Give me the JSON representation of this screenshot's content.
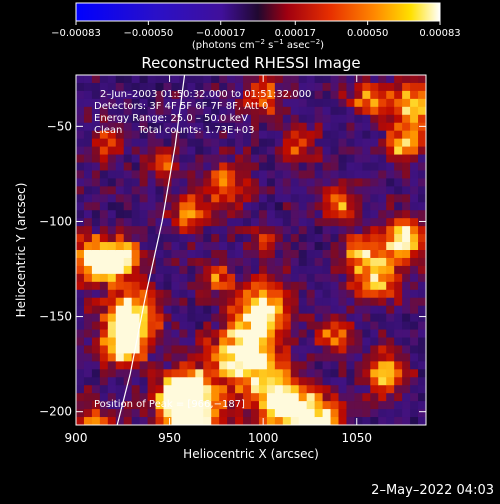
{
  "chart_data": {
    "type": "heatmap",
    "title": "Reconstructed RHESSI Image",
    "xlabel": "Heliocentric X (arcsec)",
    "ylabel": "Heliocentric Y (arcsec)",
    "xlim": [
      900,
      1087
    ],
    "ylim": [
      -207,
      -23
    ],
    "x_ticks": [
      900,
      950,
      1000,
      1050
    ],
    "y_ticks": [
      -50,
      -100,
      -150,
      -200
    ],
    "x_tick_labels": [
      "900",
      "950",
      "1000",
      "1050"
    ],
    "y_tick_labels": [
      "−50",
      "−100",
      "−150",
      "−200"
    ],
    "colorbar": {
      "range": [
        -0.00083,
        0.00083
      ],
      "ticks": [
        -0.00083,
        -0.0005,
        -0.00017,
        0.00017,
        0.0005,
        0.00083
      ],
      "tick_labels": [
        "−0.00083",
        "−0.00050",
        "−0.00017",
        "0.00017",
        "0.00050",
        "0.00083"
      ],
      "unit_text": "(photons cm",
      "unit_exp1": "−2",
      "unit_mid": " s",
      "unit_exp2": "−1",
      "unit_end": " asec",
      "unit_exp3": "−2",
      "unit_close": ")"
    },
    "annotations": {
      "time_range": "2–Jun–2003 01:50:32.000 to 01:51:32.000",
      "detectors": "Detectors: 3F 4F 5F 6F 7F 8F, Att 0",
      "energy": "Energy Range: 25.0 – 50.0 keV",
      "clean": "Clean     Total counts: 1.73E+03",
      "peak": "Position of Peak = [966,−187]"
    },
    "limb_points": [
      [
        958,
        -23
      ],
      [
        953,
        -60
      ],
      [
        946,
        -100
      ],
      [
        937,
        -140
      ],
      [
        929,
        -180
      ],
      [
        922,
        -207
      ]
    ],
    "peak_position": [
      966,
      -187
    ],
    "intensity_blobs": [
      [
        910,
        -120,
        9,
        0.9
      ],
      [
        925,
        -120,
        7,
        0.75
      ],
      [
        908,
        -215,
        10,
        0.95
      ],
      [
        930,
        -150,
        10,
        0.85
      ],
      [
        960,
        -200,
        12,
        1.0
      ],
      [
        958,
        -190,
        8,
        0.9
      ],
      [
        990,
        -170,
        12,
        0.95
      ],
      [
        1000,
        -145,
        10,
        0.85
      ],
      [
        1010,
        -195,
        11,
        0.95
      ],
      [
        1030,
        -205,
        9,
        0.8
      ],
      [
        1040,
        -160,
        7,
        0.6
      ],
      [
        1060,
        -130,
        9,
        0.75
      ],
      [
        1075,
        -110,
        8,
        0.85
      ],
      [
        1080,
        -40,
        9,
        0.8
      ],
      [
        1075,
        -60,
        7,
        0.6
      ],
      [
        1000,
        -35,
        8,
        0.5
      ],
      [
        980,
        -80,
        9,
        0.55
      ],
      [
        960,
        -95,
        7,
        0.6
      ],
      [
        1040,
        -90,
        7,
        0.55
      ],
      [
        1050,
        -115,
        7,
        0.5
      ],
      [
        925,
        -165,
        9,
        0.8
      ],
      [
        1065,
        -180,
        8,
        0.7
      ],
      [
        1020,
        -60,
        7,
        0.45
      ],
      [
        945,
        -70,
        6,
        0.5
      ],
      [
        915,
        -60,
        6,
        0.45
      ],
      [
        1000,
        -110,
        6,
        0.45
      ],
      [
        975,
        -130,
        6,
        0.5
      ],
      [
        1055,
        -35,
        7,
        0.55
      ]
    ],
    "grid": false
  },
  "footer": {
    "date": "2–May–2022 04:03"
  }
}
